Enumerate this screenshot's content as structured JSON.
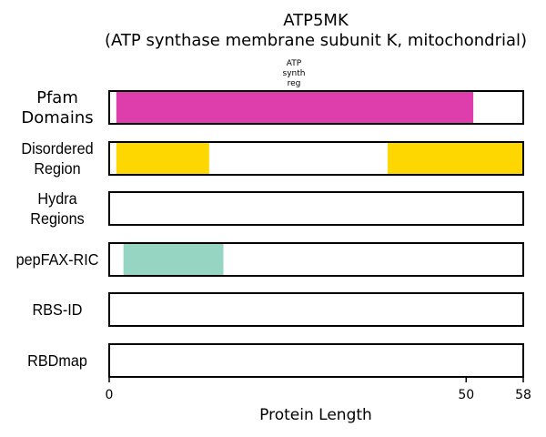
{
  "chart_data": {
    "type": "bar",
    "title_line1": "ATP5MK",
    "title_line2": "(ATP synthase membrane subunit K, mitochondrial)",
    "xlabel": "Protein Length",
    "xlim": [
      0,
      58
    ],
    "xticks": [
      "0",
      "50",
      "58"
    ],
    "tracks": [
      {
        "name": "Pfam Domains",
        "label_lines": [
          "Pfam",
          "Domains"
        ],
        "segments": [
          {
            "start": 1,
            "end": 51,
            "color": "#dd3eac",
            "annotation": [
              "ATP",
              "synth",
              "reg"
            ]
          }
        ]
      },
      {
        "name": "Disordered Region",
        "label_lines": [
          "Disordered",
          "Region"
        ],
        "segments": [
          {
            "start": 1,
            "end": 14,
            "color": "#ffd700"
          },
          {
            "start": 39,
            "end": 58,
            "color": "#ffd700"
          }
        ]
      },
      {
        "name": "Hydra Regions",
        "label_lines": [
          "Hydra",
          "Regions"
        ],
        "segments": []
      },
      {
        "name": "pepFAX-RIC",
        "label_lines": [
          "pepFAX-RIC"
        ],
        "segments": [
          {
            "start": 2,
            "end": 16,
            "color": "#95d5c2"
          }
        ]
      },
      {
        "name": "RBS-ID",
        "label_lines": [
          "RBS-ID"
        ],
        "segments": []
      },
      {
        "name": "RBDmap",
        "label_lines": [
          "RBDmap"
        ],
        "segments": []
      }
    ]
  }
}
